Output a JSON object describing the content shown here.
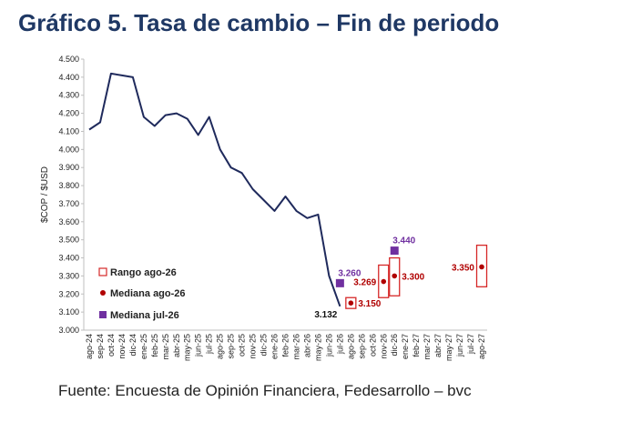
{
  "title": "Gráfico 5. Tasa de cambio – Fin de periodo",
  "source": "Fuente: Encuesta de Opinión Financiera, Fedesarrollo – bvc",
  "chart_data": {
    "type": "line",
    "ylabel": "$COP / $USD",
    "ylim": [
      3000,
      4500
    ],
    "ytick_step": 100,
    "y_tick_labels": [
      "3.000",
      "3.100",
      "3.200",
      "3.300",
      "3.400",
      "3.500",
      "3.600",
      "3.700",
      "3.800",
      "3.900",
      "4.000",
      "4.100",
      "4.200",
      "4.300",
      "4.400",
      "4.500"
    ],
    "x_tick_labels": [
      "ago-24",
      "sep-24",
      "oct-24",
      "nov-24",
      "dic-24",
      "ene-25",
      "feb-25",
      "mar-25",
      "abr-25",
      "may-25",
      "jun-25",
      "jul-25",
      "ago-25",
      "sep-25",
      "oct-25",
      "nov-25",
      "dic-25",
      "ene-26",
      "feb-26",
      "mar-26",
      "abr-26",
      "may-26",
      "jun-26",
      "jul-26",
      "ago-26",
      "sep-26",
      "oct-26",
      "nov-26",
      "dic-26",
      "ene-27",
      "feb-27",
      "mar-27",
      "abr-27",
      "may-27",
      "jun-27",
      "jul-27",
      "ago-27"
    ],
    "series": [
      {
        "kind": "line",
        "color": "#1f2a5c",
        "values": [
          4110,
          4150,
          4420,
          4410,
          4400,
          4180,
          4130,
          4190,
          4200,
          4170,
          4080,
          4180,
          4000,
          3900,
          3870,
          3780,
          3720,
          3660,
          3740,
          3660,
          3620,
          3640,
          3300,
          3132
        ]
      }
    ],
    "ranges": {
      "name": "Rango ago-26",
      "color": "#d62828",
      "items": [
        {
          "x": "ago-26",
          "low": 3120,
          "high": 3180
        },
        {
          "x": "nov-26",
          "low": 3180,
          "high": 3360
        },
        {
          "x": "dic-26",
          "low": 3190,
          "high": 3400
        },
        {
          "x": "ago-27",
          "low": 3240,
          "high": 3470
        }
      ]
    },
    "medians_ago26": {
      "name": "Mediana ago-26",
      "color": "#b00000",
      "points": [
        {
          "x": "ago-26",
          "y": 3150,
          "label": "3.150",
          "label_side": "right"
        },
        {
          "x": "nov-26",
          "y": 3269,
          "label": "3.269",
          "label_side": "left"
        },
        {
          "x": "dic-26",
          "y": 3300,
          "label": "3.300",
          "label_side": "right"
        },
        {
          "x": "ago-27",
          "y": 3350,
          "label": "3.350",
          "label_side": "left"
        }
      ]
    },
    "medians_jul26": {
      "name": "Mediana jul-26",
      "color": "#7030a0",
      "points": [
        {
          "x": "jul-26",
          "y": 3260,
          "label": "3.260",
          "label_side": "above"
        },
        {
          "x": "dic-26",
          "y": 3440,
          "label": "3.440",
          "label_side": "above"
        }
      ]
    },
    "last_value_label": {
      "x": "jul-26",
      "y": 3132,
      "label": "3.132"
    },
    "legend_position": "bottom-left"
  }
}
